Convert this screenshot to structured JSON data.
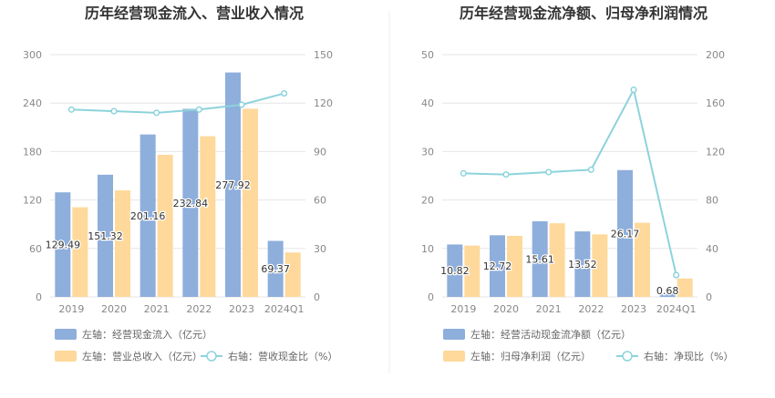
{
  "colors": {
    "bar_left": "#8eaedc",
    "bar_right": "#fed99b",
    "line": "#8dd3dc",
    "grid": "#e6e6e6",
    "divider": "#eeeeee"
  },
  "chart_data": [
    {
      "type": "bar",
      "title": "历年经营现金流入、营业收入情况",
      "categories": [
        "2019",
        "2020",
        "2021",
        "2022",
        "2023",
        "2024Q1"
      ],
      "y_left": {
        "min": 0,
        "max": 300,
        "ticks": [
          "0",
          "60",
          "120",
          "180",
          "240",
          "300"
        ]
      },
      "y_right": {
        "min": 0,
        "max": 150,
        "ticks": [
          "0",
          "30",
          "60",
          "90",
          "120",
          "150"
        ]
      },
      "series": [
        {
          "name": "左轴：经营现金流入（亿元）",
          "type": "bar",
          "axis": "left",
          "values": [
            129.49,
            151.32,
            201.16,
            232.84,
            277.92,
            69.37
          ],
          "labels": [
            "129.49",
            "151.32",
            "201.16",
            "232.84",
            "277.92",
            "69.37"
          ]
        },
        {
          "name": "左轴：营业总收入（亿元）",
          "type": "bar",
          "axis": "left",
          "values": [
            111,
            132,
            176,
            199,
            233,
            55
          ]
        },
        {
          "name": "右轴：营收现金比（%）",
          "type": "line",
          "axis": "right",
          "values": [
            116,
            115,
            114,
            116,
            119,
            126
          ]
        }
      ]
    },
    {
      "type": "bar",
      "title": "历年经营现金流净额、归母净利润情况",
      "categories": [
        "2019",
        "2020",
        "2021",
        "2022",
        "2023",
        "2024Q1"
      ],
      "y_left": {
        "min": 0,
        "max": 50,
        "ticks": [
          "0",
          "10",
          "20",
          "30",
          "40",
          "50"
        ]
      },
      "y_right": {
        "min": 0,
        "max": 200,
        "ticks": [
          "0",
          "40",
          "80",
          "120",
          "160",
          "200"
        ]
      },
      "series": [
        {
          "name": "左轴：经营活动现金流净额（亿元）",
          "type": "bar",
          "axis": "left",
          "values": [
            10.82,
            12.72,
            15.61,
            13.52,
            26.17,
            0.68
          ],
          "labels": [
            "10.82",
            "12.72",
            "15.61",
            "13.52",
            "26.17",
            "0.68"
          ]
        },
        {
          "name": "左轴：归母净利润（亿元）",
          "type": "bar",
          "axis": "left",
          "values": [
            10.6,
            12.6,
            15.2,
            12.9,
            15.3,
            3.8
          ]
        },
        {
          "name": "右轴：净现比（%）",
          "type": "line",
          "axis": "right",
          "values": [
            102,
            101,
            103,
            105,
            171,
            18
          ]
        }
      ]
    }
  ]
}
